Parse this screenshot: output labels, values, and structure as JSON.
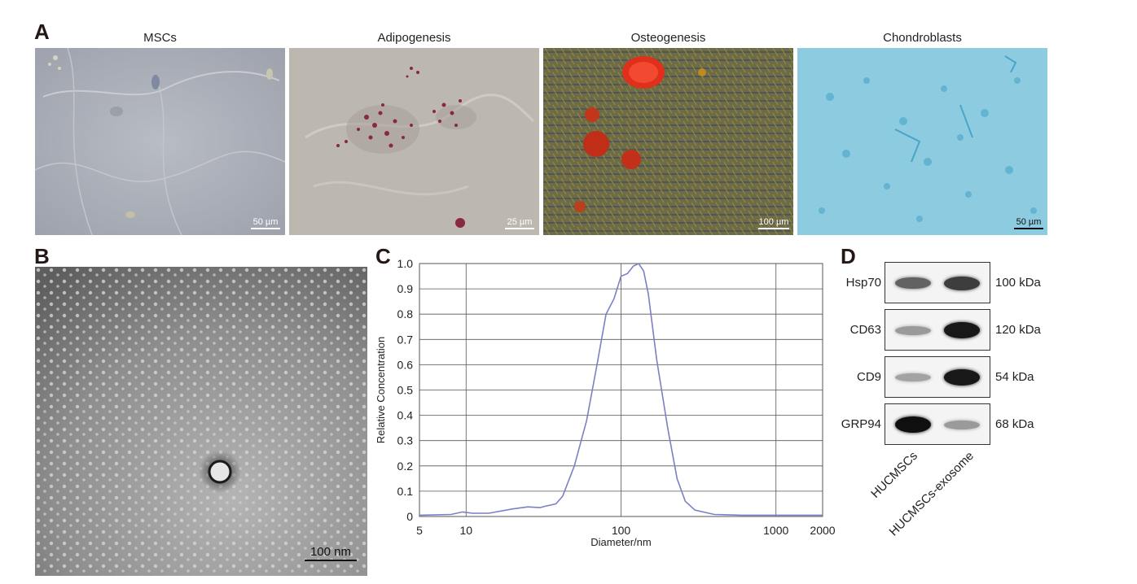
{
  "panels": {
    "a": {
      "letter": "A",
      "images": [
        {
          "title": "MSCs",
          "scale": "50 µm"
        },
        {
          "title": "Adipogenesis",
          "scale": "25 µm"
        },
        {
          "title": "Osteogenesis",
          "scale": "100 µm"
        },
        {
          "title": "Chondroblasts",
          "scale": "50 µm"
        }
      ]
    },
    "b": {
      "letter": "B",
      "scale": "100 nm"
    },
    "c": {
      "letter": "C"
    },
    "d": {
      "letter": "D",
      "rows": [
        {
          "protein": "Hsp70",
          "kda": "100 kDa",
          "band1": 0.55,
          "band2": 0.75
        },
        {
          "protein": "CD63",
          "kda": "120 kDa",
          "band1": 0.25,
          "band2": 0.95
        },
        {
          "protein": "CD9",
          "kda": "54 kDa",
          "band1": 0.2,
          "band2": 0.95
        },
        {
          "protein": "GRP94",
          "kda": "68 kDa",
          "band1": 1.0,
          "band2": 0.25
        }
      ],
      "lanes": [
        "HUCMSCs",
        "HUCMSCs-exosome"
      ]
    }
  },
  "chart_data": {
    "type": "line",
    "xlabel": "Diameter/nm",
    "ylabel": "Relative Concentration",
    "xscale": "log",
    "xlim": [
      5,
      2000
    ],
    "ylim": [
      0,
      1.0
    ],
    "xticks": [
      "5",
      "10",
      "100",
      "1000",
      "2000"
    ],
    "yticks": [
      "0",
      "0.1",
      "0.2",
      "0.3",
      "0.4",
      "0.5",
      "0.6",
      "0.7",
      "0.8",
      "0.9",
      "1.0"
    ],
    "grid": true,
    "series": [
      {
        "color": "#7b7fc4",
        "x": [
          5,
          8,
          9.5,
          11,
          14,
          20,
          25,
          30,
          32,
          35,
          38,
          42,
          50,
          60,
          70,
          80,
          90,
          100,
          110,
          120,
          130,
          140,
          150,
          170,
          200,
          230,
          260,
          300,
          400,
          600,
          1000,
          2000
        ],
        "y": [
          0.005,
          0.008,
          0.018,
          0.013,
          0.013,
          0.03,
          0.038,
          0.035,
          0.04,
          0.045,
          0.05,
          0.08,
          0.2,
          0.38,
          0.6,
          0.8,
          0.86,
          0.95,
          0.96,
          0.99,
          1.0,
          0.97,
          0.88,
          0.62,
          0.35,
          0.15,
          0.06,
          0.025,
          0.008,
          0.005,
          0.005,
          0.005
        ]
      }
    ]
  }
}
